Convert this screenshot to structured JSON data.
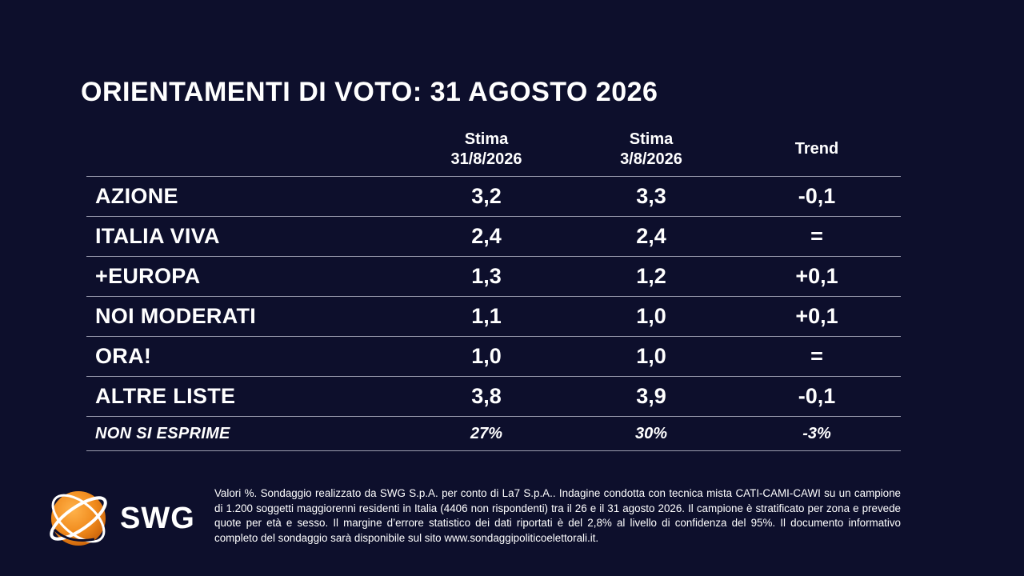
{
  "title": "ORIENTAMENTI DI VOTO: 31 AGOSTO 2026",
  "columns": [
    {
      "line1": "Stima",
      "line2": "31/8/2026"
    },
    {
      "line1": "Stima",
      "line2": "3/8/2026"
    },
    {
      "line1": "Trend",
      "line2": ""
    }
  ],
  "rows": [
    {
      "party": "AZIONE",
      "current": "3,2",
      "previous": "3,3",
      "trend": "-0,1"
    },
    {
      "party": "ITALIA VIVA",
      "current": "2,4",
      "previous": "2,4",
      "trend": "="
    },
    {
      "party": "+EUROPA",
      "current": "1,3",
      "previous": "1,2",
      "trend": "+0,1"
    },
    {
      "party": "NOI MODERATI",
      "current": "1,1",
      "previous": "1,0",
      "trend": "+0,1"
    },
    {
      "party": "ORA!",
      "current": "1,0",
      "previous": "1,0",
      "trend": "="
    },
    {
      "party": "ALTRE LISTE",
      "current": "3,8",
      "previous": "3,9",
      "trend": "-0,1"
    },
    {
      "party": "NON SI ESPRIME",
      "current": "27%",
      "previous": "30%",
      "trend": "-3%"
    }
  ],
  "chart_data": {
    "type": "table",
    "title": "ORIENTAMENTI DI VOTO: 31 AGOSTO 2026",
    "columns": [
      "Stima 31/8/2026",
      "Stima 3/8/2026",
      "Trend"
    ],
    "categories": [
      "AZIONE",
      "ITALIA VIVA",
      "+EUROPA",
      "NOI MODERATI",
      "ORA!",
      "ALTRE LISTE",
      "NON SI ESPRIME"
    ],
    "series": [
      {
        "name": "Stima 31/8/2026",
        "values": [
          3.2,
          2.4,
          1.3,
          1.1,
          1.0,
          3.8,
          27
        ]
      },
      {
        "name": "Stima 3/8/2026",
        "values": [
          3.3,
          2.4,
          1.2,
          1.0,
          1.0,
          3.9,
          30
        ]
      },
      {
        "name": "Trend",
        "values": [
          -0.1,
          0,
          0.1,
          0.1,
          0,
          -0.1,
          -3
        ]
      }
    ]
  },
  "logo": {
    "text": "SWG",
    "colors": {
      "orange": "#f08a1c",
      "background": "#0d0f2c"
    }
  },
  "footnote": "Valori %. Sondaggio realizzato da SWG S.p.A. per conto di La7 S.p.A.. Indagine condotta con tecnica mista CATI-CAMI-CAWI su un campione di 1.200 soggetti maggiorenni residenti in Italia (4406 non rispondenti) tra il 26 e il 31 agosto 2026. Il campione è stratificato per zona e prevede quote per età e sesso. Il margine d’errore statistico dei dati riportati è del 2,8% al livello di confidenza del 95%. Il documento informativo completo del sondaggio sarà disponibile sul sito www.sondaggipoliticoelettorali.it."
}
